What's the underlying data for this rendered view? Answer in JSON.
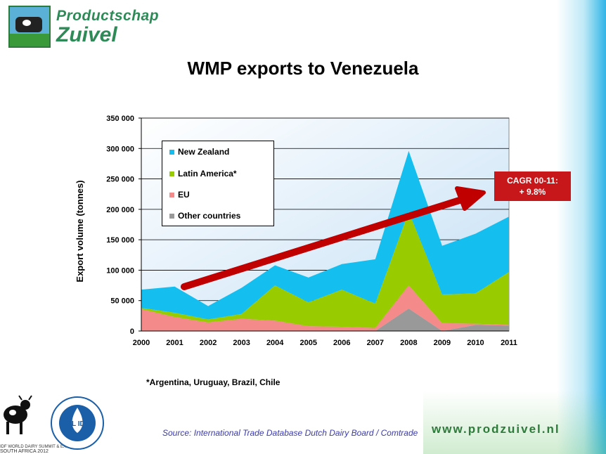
{
  "logo": {
    "line1": "Productschap",
    "line2": "Zuivel"
  },
  "title": "WMP exports to Venezuela",
  "chart_data": {
    "type": "area",
    "stacked": true,
    "categories": [
      "2000",
      "2001",
      "2002",
      "2003",
      "2004",
      "2005",
      "2006",
      "2007",
      "2008",
      "2009",
      "2010",
      "2011"
    ],
    "series": [
      {
        "name": "Other countries",
        "color": "#999999",
        "values": [
          0,
          0,
          0,
          0,
          0,
          0,
          0,
          0,
          37000,
          0,
          10000,
          9000
        ]
      },
      {
        "name": "EU",
        "color": "#f58a8a",
        "values": [
          36000,
          23000,
          14000,
          20000,
          17000,
          8000,
          7000,
          5000,
          38000,
          13000,
          2000,
          1000
        ]
      },
      {
        "name": "Latin America*",
        "color": "#99cc00",
        "values": [
          2000,
          7000,
          5000,
          8000,
          58000,
          39000,
          61000,
          40000,
          121000,
          47000,
          50000,
          87000
        ]
      },
      {
        "name": "New Zealand",
        "color": "#14bff0",
        "values": [
          30000,
          43000,
          22000,
          43000,
          33000,
          41000,
          42000,
          73000,
          100000,
          80000,
          98000,
          91000
        ]
      }
    ],
    "ylabel": "Export volume (tonnes)",
    "xlabel": "",
    "ylim": [
      0,
      350000
    ],
    "y_ticks": [
      0,
      50000,
      100000,
      150000,
      200000,
      250000,
      300000,
      350000
    ],
    "y_tick_labels": [
      "0",
      "50 000",
      "100 000",
      "150 000",
      "200 000",
      "250 000",
      "300 000",
      "350 000"
    ],
    "grid": true,
    "legend": [
      "New Zealand",
      "Latin America*",
      "EU",
      "Other countries"
    ],
    "legend_position": "top-left",
    "annotation": {
      "line1": "CAGR 00-11:",
      "line2": "+ 9.8%",
      "arrow_color": "#c00000"
    }
  },
  "footnote": "*Argentina, Uruguay, Brazil, Chile",
  "source": "Source: International Trade Database Dutch Dairy Board / Comtrade",
  "website": "www.prodzuivel.nl",
  "bottom_logos": {
    "fil_text": "FIL IDF",
    "summit_line1": "IDF WORLD DAIRY SUMMIT & EXHIBITION",
    "summit_line2": "SOUTH AFRICA 2012"
  }
}
